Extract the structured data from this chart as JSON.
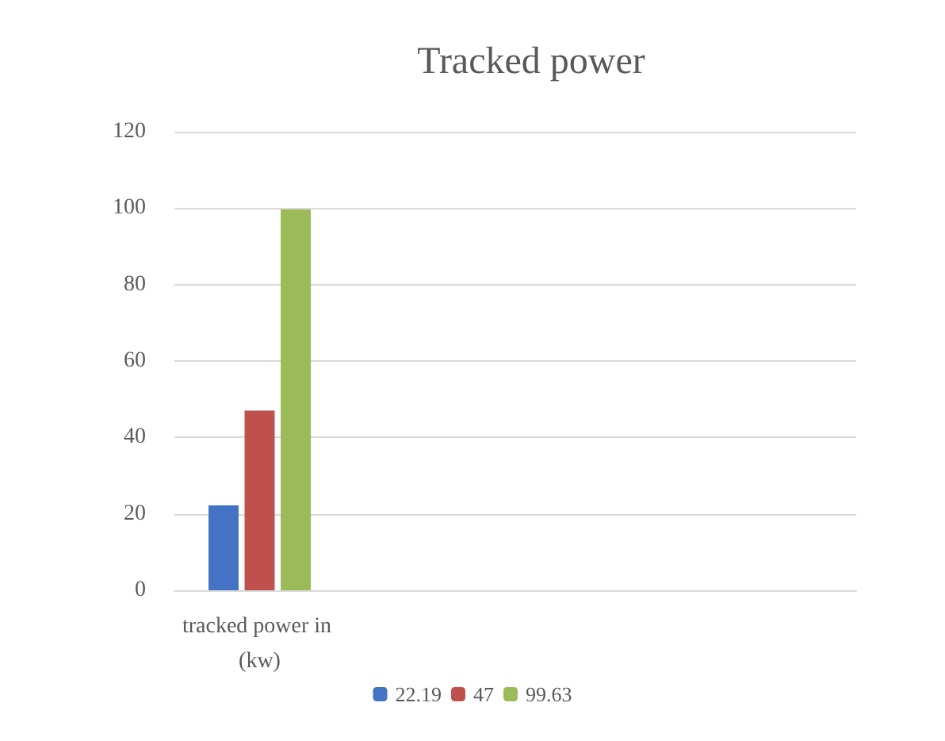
{
  "chart_data": {
    "type": "bar",
    "title": "Tracked power",
    "categories": [
      "tracked power in (kw)",
      null,
      null,
      null
    ],
    "series": [
      {
        "name": "22.19",
        "color": "#4472c4",
        "values": [
          22.19,
          null,
          null,
          null
        ]
      },
      {
        "name": "47",
        "color": "#c0504d",
        "values": [
          47,
          null,
          null,
          null
        ]
      },
      {
        "name": "99.63",
        "color": "#9bbb59",
        "values": [
          99.63,
          null,
          null,
          null
        ]
      }
    ],
    "ylim": [
      0,
      120
    ],
    "yticks": [
      0,
      20,
      40,
      60,
      80,
      100,
      120
    ],
    "grid": "y",
    "legend": "bottom"
  }
}
